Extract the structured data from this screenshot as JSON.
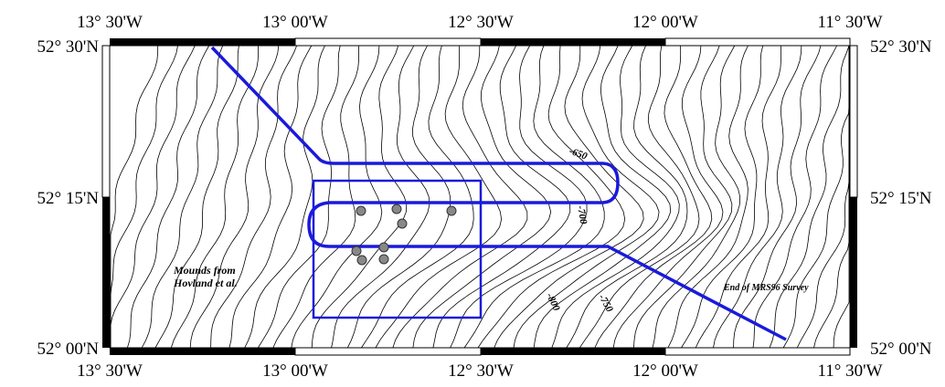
{
  "map": {
    "top_labels": [
      "13° 30'W",
      "13° 00'W",
      "12° 30'W",
      "12° 00'W",
      "11° 30'W"
    ],
    "bottom_labels": [
      "13° 30'W",
      "13° 00'W",
      "12° 30'W",
      "12° 00'W",
      "11° 30'W"
    ],
    "left_labels": [
      "52° 30'N",
      "52° 15'N",
      "52° 00'N"
    ],
    "right_labels": [
      "52° 30'N",
      "52° 15'N",
      "52° 00'N"
    ],
    "contour_labels": [
      "-650",
      "-700",
      "-750",
      "-800"
    ],
    "annotations": [
      "Mounds from Hovland et al.",
      "End of MRS96 Survey"
    ]
  }
}
